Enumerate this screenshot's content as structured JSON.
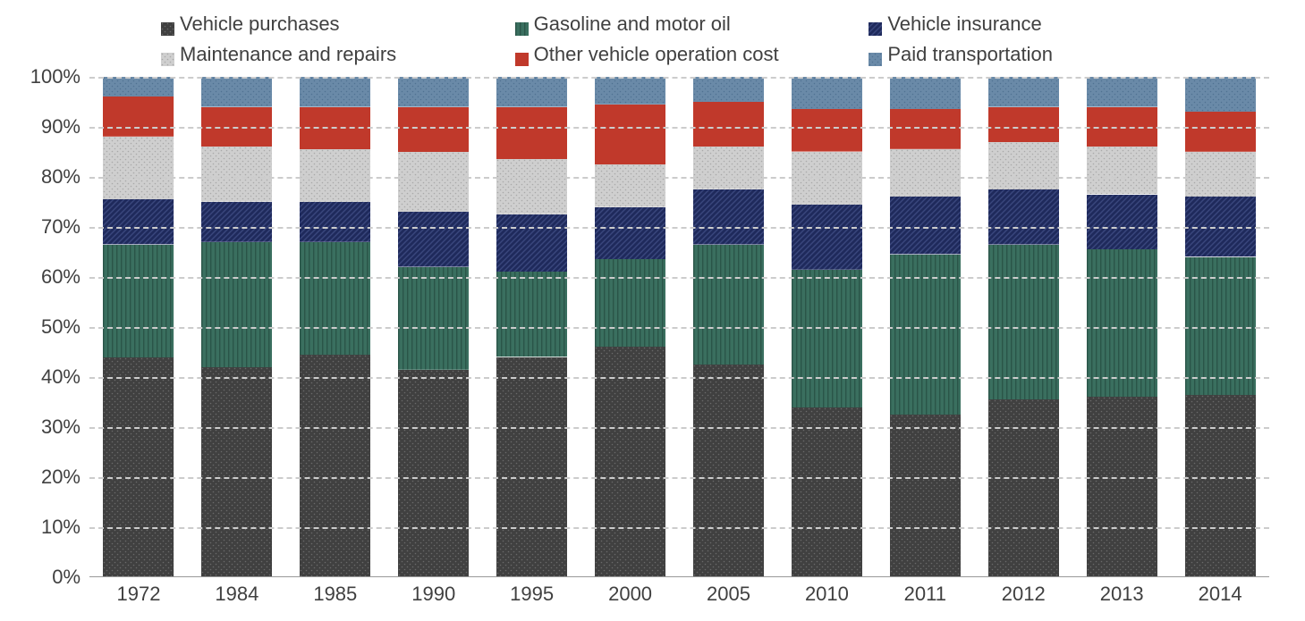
{
  "chart": {
    "type": "stacked-bar-percent",
    "background_color": "#ffffff",
    "grid_color": "#cccccc",
    "text_color": "#404040",
    "font_family": "Arial",
    "label_fontsize": 22,
    "ylim": [
      0,
      100
    ],
    "ytick_step": 10,
    "ytick_suffix": "%",
    "series": [
      {
        "key": "vehicle_purchases",
        "label": "Vehicle purchases",
        "color": "#404040",
        "pattern": "dots-dark"
      },
      {
        "key": "gasoline",
        "label": "Gasoline and motor oil",
        "color": "#3a6f5f",
        "pattern": "vertical-stripes"
      },
      {
        "key": "vehicle_insurance",
        "label": "Vehicle insurance",
        "color": "#1f2a5c",
        "pattern": "diagonal-stripes"
      },
      {
        "key": "maintenance_repairs",
        "label": "Maintenance and repairs",
        "color": "#bfbfbf",
        "pattern": "dots-light"
      },
      {
        "key": "other_operation",
        "label": "Other vehicle operation cost",
        "color": "#c0392b",
        "pattern": "solid"
      },
      {
        "key": "paid_transport",
        "label": "Paid transportation",
        "color": "#6a8aa8",
        "pattern": "dots-medium"
      }
    ],
    "categories": [
      "1972",
      "1984",
      "1985",
      "1990",
      "1995",
      "2000",
      "2005",
      "2010",
      "2011",
      "2012",
      "2013",
      "2014"
    ],
    "data": {
      "1972": {
        "vehicle_purchases": 44.0,
        "gasoline": 22.5,
        "vehicle_insurance": 9.0,
        "maintenance_repairs": 12.5,
        "other_operation": 8.0,
        "paid_transport": 4.0
      },
      "1984": {
        "vehicle_purchases": 42.0,
        "gasoline": 25.0,
        "vehicle_insurance": 8.0,
        "maintenance_repairs": 11.0,
        "other_operation": 8.0,
        "paid_transport": 6.0
      },
      "1985": {
        "vehicle_purchases": 44.5,
        "gasoline": 22.5,
        "vehicle_insurance": 8.0,
        "maintenance_repairs": 10.5,
        "other_operation": 8.5,
        "paid_transport": 6.0
      },
      "1990": {
        "vehicle_purchases": 41.5,
        "gasoline": 20.5,
        "vehicle_insurance": 11.0,
        "maintenance_repairs": 12.0,
        "other_operation": 9.0,
        "paid_transport": 6.0
      },
      "1995": {
        "vehicle_purchases": 44.0,
        "gasoline": 17.0,
        "vehicle_insurance": 11.5,
        "maintenance_repairs": 11.0,
        "other_operation": 10.5,
        "paid_transport": 6.0
      },
      "2000": {
        "vehicle_purchases": 46.0,
        "gasoline": 17.5,
        "vehicle_insurance": 10.5,
        "maintenance_repairs": 8.5,
        "other_operation": 12.0,
        "paid_transport": 5.5
      },
      "2005": {
        "vehicle_purchases": 42.5,
        "gasoline": 24.0,
        "vehicle_insurance": 11.0,
        "maintenance_repairs": 8.5,
        "other_operation": 9.0,
        "paid_transport": 5.0
      },
      "2010": {
        "vehicle_purchases": 34.0,
        "gasoline": 27.5,
        "vehicle_insurance": 13.0,
        "maintenance_repairs": 10.5,
        "other_operation": 8.5,
        "paid_transport": 6.5
      },
      "2011": {
        "vehicle_purchases": 32.5,
        "gasoline": 32.0,
        "vehicle_insurance": 11.5,
        "maintenance_repairs": 9.5,
        "other_operation": 8.0,
        "paid_transport": 6.5
      },
      "2012": {
        "vehicle_purchases": 35.5,
        "gasoline": 31.0,
        "vehicle_insurance": 11.0,
        "maintenance_repairs": 9.5,
        "other_operation": 7.0,
        "paid_transport": 6.0
      },
      "2013": {
        "vehicle_purchases": 36.0,
        "gasoline": 29.5,
        "vehicle_insurance": 11.0,
        "maintenance_repairs": 9.5,
        "other_operation": 8.0,
        "paid_transport": 6.0
      },
      "2014": {
        "vehicle_purchases": 36.5,
        "gasoline": 27.5,
        "vehicle_insurance": 12.0,
        "maintenance_repairs": 9.0,
        "other_operation": 8.0,
        "paid_transport": 7.0
      }
    },
    "bar_width_ratio": 0.72
  }
}
